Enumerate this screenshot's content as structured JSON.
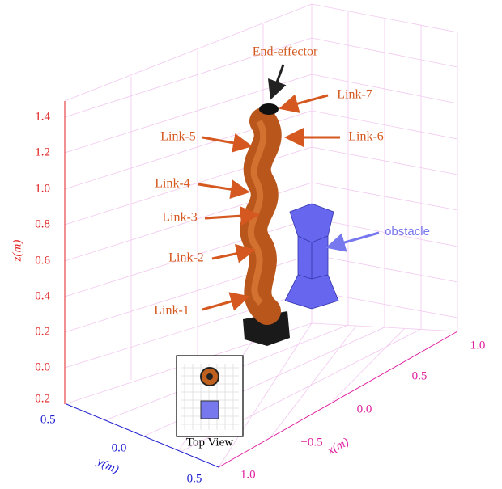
{
  "axes": {
    "z": {
      "label": "z(m)",
      "ticks": [
        "1.4",
        "1.2",
        "1.0",
        "0.8",
        "0.6",
        "0.4",
        "0.2",
        "0.0",
        "−0.2"
      ]
    },
    "y": {
      "label": "y(m)",
      "ticks": [
        "−0.5",
        "0.0",
        "0.5"
      ]
    },
    "x": {
      "label": "x(m)",
      "ticks": [
        "−1.0",
        "−0.5",
        "0.0",
        "0.5",
        "1.0"
      ]
    }
  },
  "annotations": {
    "end_effector": "End-effector",
    "links": [
      "Link-1",
      "Link-2",
      "Link-3",
      "Link-4",
      "Link-5",
      "Link-6",
      "Link-7"
    ],
    "obstacle": "obstacle"
  },
  "inset": {
    "title": "Top View"
  }
}
